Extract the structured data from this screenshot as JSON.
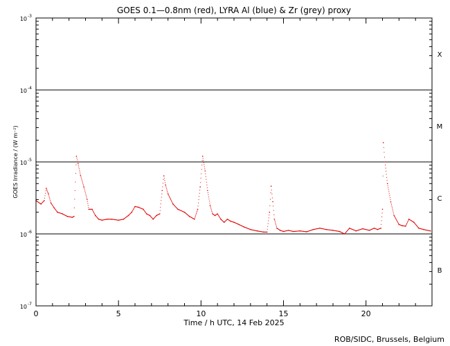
{
  "chart_data": {
    "type": "scatter",
    "title": "GOES 0.1—0.8nm (red), LYRA Al (blue) & Zr (grey) proxy",
    "xlabel": "Time / h UTC, 14 Feb 2025",
    "ylabel": "GOES Irradiance / (W m⁻²)",
    "credit": "ROB/SIDC, Brussels, Belgium",
    "xlim": [
      0,
      24
    ],
    "ylim": [
      1e-07,
      0.001
    ],
    "yscale": "log",
    "grid": false,
    "x_ticks": [
      {
        "value": 0,
        "label": "0"
      },
      {
        "value": 5,
        "label": "5"
      },
      {
        "value": 10,
        "label": "10"
      },
      {
        "value": 15,
        "label": "15"
      },
      {
        "value": 20,
        "label": "20"
      }
    ],
    "y_ticks": [
      {
        "exp": -7,
        "label": "10",
        "sup": "-7"
      },
      {
        "exp": -6,
        "label": "10",
        "sup": "-6"
      },
      {
        "exp": -5,
        "label": "10",
        "sup": "-5"
      },
      {
        "exp": -4,
        "label": "10",
        "sup": "-4"
      },
      {
        "exp": -3,
        "label": "10",
        "sup": "-3"
      }
    ],
    "flare_classes": [
      {
        "label": "B",
        "exp": -6.5
      },
      {
        "label": "C",
        "exp": -5.5
      },
      {
        "label": "M",
        "exp": -4.5
      },
      {
        "label": "X",
        "exp": -3.5
      }
    ],
    "class_lines": [
      1e-06,
      1e-05,
      0.0001
    ],
    "series": [
      {
        "color": "#e00000",
        "x": [
          0.0,
          0.3,
          0.5,
          0.62,
          0.75,
          0.9,
          1.1,
          1.3,
          1.6,
          1.9,
          2.2,
          2.3,
          2.45,
          2.55,
          2.7,
          2.9,
          3.1,
          3.2,
          3.4,
          3.6,
          3.8,
          4.0,
          4.3,
          4.6,
          5.0,
          5.3,
          5.6,
          5.8,
          6.0,
          6.2,
          6.5,
          6.7,
          6.9,
          7.1,
          7.3,
          7.5,
          7.65,
          7.75,
          7.85,
          8.0,
          8.3,
          8.6,
          9.0,
          9.3,
          9.6,
          9.8,
          9.95,
          10.1,
          10.25,
          10.4,
          10.55,
          10.7,
          10.85,
          11.0,
          11.2,
          11.4,
          11.6,
          11.8,
          12.0,
          12.3,
          12.6,
          13.0,
          13.4,
          13.8,
          14.0,
          14.15,
          14.25,
          14.35,
          14.45,
          14.6,
          14.8,
          15.0,
          15.3,
          15.6,
          16.0,
          16.4,
          16.8,
          17.2,
          17.6,
          18.0,
          18.4,
          18.7,
          19.0,
          19.4,
          19.8,
          20.2,
          20.5,
          20.7,
          20.9,
          21.0,
          21.05,
          21.15,
          21.3,
          21.5,
          21.7,
          22.0,
          22.2,
          22.4,
          22.6,
          22.9,
          23.2,
          23.5,
          23.9
        ],
        "y": [
          2.9e-06,
          2.6e-06,
          2.9e-06,
          4.3e-06,
          3.6e-06,
          2.7e-06,
          2.3e-06,
          2e-06,
          1.9e-06,
          1.75e-06,
          1.7e-06,
          1.75e-06,
          1.2e-05,
          9.5e-06,
          6.5e-06,
          4.5e-06,
          3e-06,
          2.2e-06,
          2.2e-06,
          1.8e-06,
          1.6e-06,
          1.55e-06,
          1.6e-06,
          1.6e-06,
          1.55e-06,
          1.6e-06,
          1.8e-06,
          2e-06,
          2.4e-06,
          2.35e-06,
          2.2e-06,
          1.9e-06,
          1.8e-06,
          1.6e-06,
          1.8e-06,
          1.9e-06,
          4e-06,
          6.4e-06,
          4.8e-06,
          3.6e-06,
          2.6e-06,
          2.2e-06,
          2e-06,
          1.75e-06,
          1.6e-06,
          2.2e-06,
          4.5e-06,
          1.2e-05,
          7.5e-06,
          4e-06,
          2.5e-06,
          1.9e-06,
          1.8e-06,
          1.9e-06,
          1.6e-06,
          1.45e-06,
          1.6e-06,
          1.5e-06,
          1.45e-06,
          1.35e-06,
          1.25e-06,
          1.15e-06,
          1.1e-06,
          1.06e-06,
          1.06e-06,
          2e-06,
          4.6e-06,
          2.8e-06,
          1.6e-06,
          1.2e-06,
          1.12e-06,
          1.08e-06,
          1.12e-06,
          1.08e-06,
          1.1e-06,
          1.07e-06,
          1.15e-06,
          1.2e-06,
          1.15e-06,
          1.12e-06,
          1.08e-06,
          1e-06,
          1.2e-06,
          1.1e-06,
          1.18e-06,
          1.12e-06,
          1.2e-06,
          1.15e-06,
          1.2e-06,
          2.2e-06,
          1.85e-05,
          1e-05,
          5e-06,
          2.8e-06,
          1.8e-06,
          1.35e-06,
          1.3e-06,
          1.28e-06,
          1.6e-06,
          1.45e-06,
          1.2e-06,
          1.15e-06,
          1.1e-06
        ]
      }
    ]
  }
}
